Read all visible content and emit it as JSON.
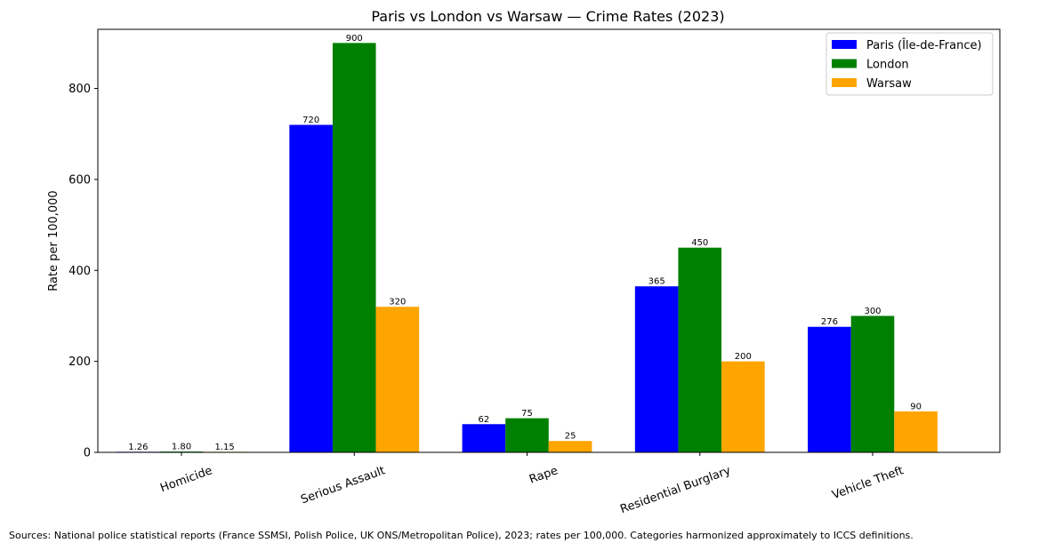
{
  "chart_data": {
    "type": "bar",
    "title": "Paris vs London vs Warsaw — Crime Rates (2023)",
    "xlabel": "",
    "ylabel": "Rate per 100,000",
    "ylim": [
      0,
      930
    ],
    "yticks": [
      0,
      200,
      400,
      600,
      800
    ],
    "grid": false,
    "legend_position": "top-right",
    "categories": [
      "Homicide",
      "Serious Assault",
      "Rape",
      "Residential Burglary",
      "Vehicle Theft"
    ],
    "series": [
      {
        "name": "Paris (Île-de-France)",
        "color": "#0000ff",
        "values": [
          1.26,
          720,
          62,
          365,
          276
        ],
        "labels": [
          "1.26",
          "720",
          "62",
          "365",
          "276"
        ]
      },
      {
        "name": "London",
        "color": "#008000",
        "values": [
          1.8,
          900,
          75,
          450,
          300
        ],
        "labels": [
          "1.80",
          "900",
          "75",
          "450",
          "300"
        ]
      },
      {
        "name": "Warsaw",
        "color": "#ffa500",
        "values": [
          1.15,
          320,
          25,
          200,
          90
        ],
        "labels": [
          "1.15",
          "320",
          "25",
          "200",
          "90"
        ]
      }
    ]
  },
  "footnote": "Sources: National police statistical reports (France SSMSI, Polish Police, UK ONS/Metropolitan Police), 2023; rates per 100,000. Categories harmonized approximately to ICCS definitions."
}
